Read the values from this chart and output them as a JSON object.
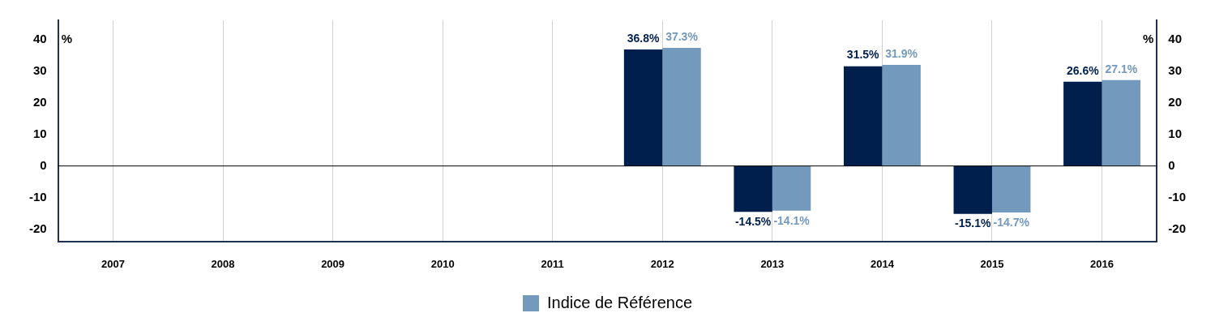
{
  "chart_data": {
    "type": "bar",
    "categories": [
      "2007",
      "2008",
      "2009",
      "2010",
      "2011",
      "2012",
      "2013",
      "2014",
      "2015",
      "2016"
    ],
    "series": [
      {
        "color": "#001f4d",
        "values": [
          null,
          null,
          null,
          null,
          null,
          36.8,
          -14.5,
          31.5,
          -15.1,
          26.6
        ],
        "value_labels": [
          null,
          null,
          null,
          null,
          null,
          "36.8%",
          "-14.5%",
          "31.5%",
          "-15.1%",
          "26.6%"
        ]
      },
      {
        "name": "Indice de Référence",
        "color": "#7399bd",
        "values": [
          null,
          null,
          null,
          null,
          null,
          37.3,
          -14.1,
          31.9,
          -14.7,
          27.1
        ],
        "value_labels": [
          null,
          null,
          null,
          null,
          null,
          "37.3%",
          "-14.1%",
          "31.9%",
          "-14.7%",
          "27.1%"
        ]
      }
    ],
    "ylabel": "%",
    "y2label": "%",
    "ylim": [
      -24,
      46
    ],
    "yticks": [
      -20,
      -10,
      0,
      10,
      20,
      30,
      40
    ],
    "y2lim": [
      -24,
      46
    ],
    "y2ticks": [
      -20,
      -10,
      0,
      10,
      20,
      30,
      40
    ],
    "ref_lines": [
      {
        "axis": "y",
        "value": 0,
        "color": "#000000"
      }
    ],
    "grid": "x",
    "legend": "bottom"
  }
}
